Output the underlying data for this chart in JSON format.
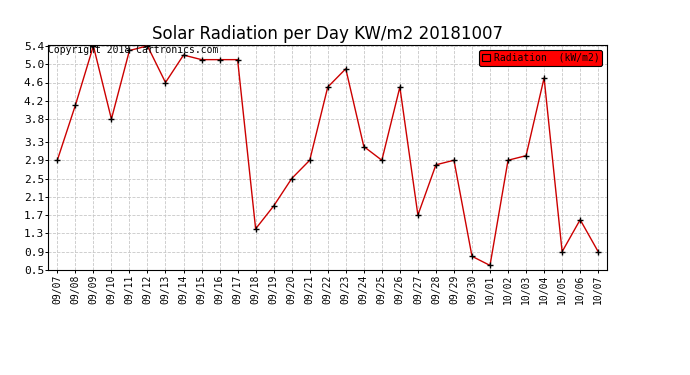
{
  "title": "Solar Radiation per Day KW/m2 20181007",
  "copyright_text": "Copyright 2018 Cartronics.com",
  "legend_label": "Radiation  (kW/m2)",
  "dates": [
    "09/07",
    "09/08",
    "09/09",
    "09/10",
    "09/11",
    "09/12",
    "09/13",
    "09/14",
    "09/15",
    "09/16",
    "09/17",
    "09/18",
    "09/19",
    "09/20",
    "09/21",
    "09/22",
    "09/23",
    "09/24",
    "09/25",
    "09/26",
    "09/27",
    "09/28",
    "09/29",
    "09/30",
    "10/01",
    "10/02",
    "10/03",
    "10/04",
    "10/05",
    "10/06",
    "10/07"
  ],
  "values": [
    2.9,
    4.1,
    5.4,
    3.8,
    5.3,
    5.4,
    4.6,
    5.2,
    5.1,
    5.1,
    5.1,
    1.4,
    1.9,
    2.5,
    2.9,
    4.5,
    4.9,
    3.2,
    2.9,
    4.5,
    1.7,
    2.8,
    2.9,
    0.8,
    0.6,
    2.9,
    3.0,
    4.7,
    0.9,
    1.6,
    0.9
  ],
  "line_color": "#cc0000",
  "marker_color": "#000000",
  "background_color": "#ffffff",
  "grid_color": "#c8c8c8",
  "ylim_min": 0.5,
  "ylim_max": 5.4,
  "yticks": [
    0.5,
    0.9,
    1.3,
    1.7,
    2.1,
    2.5,
    2.9,
    3.3,
    3.8,
    4.2,
    4.6,
    5.0,
    5.4
  ],
  "legend_bg": "#ff0000",
  "legend_text_color": "#000000",
  "title_fontsize": 12,
  "tick_fontsize": 7,
  "copyright_fontsize": 7
}
